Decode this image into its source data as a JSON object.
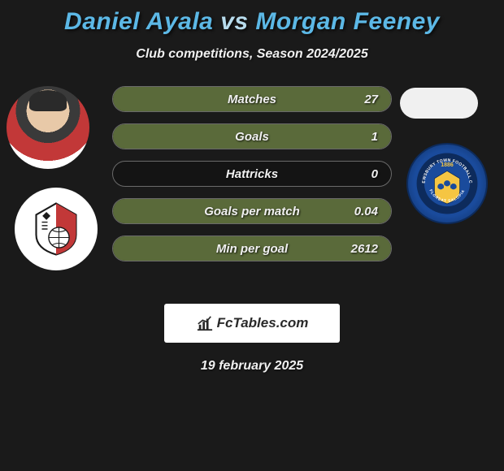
{
  "title": {
    "player1": "Daniel Ayala",
    "connector": "vs",
    "player2": "Morgan Feeney",
    "color_player": "#5cb8e6",
    "color_connector": "#b8dced",
    "fontsize": 30
  },
  "subtitle": {
    "text": "Club competitions, Season 2024/2025",
    "color": "#f0f0f0",
    "fontsize": 16
  },
  "avatars": {
    "left_player": {
      "name": "daniel-ayala-headshot"
    },
    "left_club": {
      "name": "rotherham-united-badge",
      "bg": "#ffffff",
      "accent": "#c23838",
      "stroke": "#1a1a1a"
    },
    "right_player": {
      "name": "morgan-feeney-placeholder",
      "bg": "#f0f0f0"
    },
    "right_club": {
      "name": "shrewsbury-town-badge",
      "bg": "#1a4b9c",
      "ring": "#0d2b5c",
      "accent": "#f5c542",
      "year": "1886"
    }
  },
  "stats": {
    "pill_bg": "#141414",
    "pill_border": "#6a6a6a",
    "pill_fill_right": "#5a6a3a",
    "text_color": "#f0f0f0",
    "label_fontsize": 15,
    "rows": [
      {
        "label": "Matches",
        "left": "",
        "right": "27",
        "fill_right_pct": 100
      },
      {
        "label": "Goals",
        "left": "",
        "right": "1",
        "fill_right_pct": 100
      },
      {
        "label": "Hattricks",
        "left": "",
        "right": "0",
        "fill_right_pct": 0
      },
      {
        "label": "Goals per match",
        "left": "",
        "right": "0.04",
        "fill_right_pct": 100
      },
      {
        "label": "Min per goal",
        "left": "",
        "right": "2612",
        "fill_right_pct": 100
      }
    ]
  },
  "branding": {
    "text": "FcTables.com",
    "bg": "#ffffff",
    "text_color": "#2a2a2a",
    "icon_color": "#2a2a2a"
  },
  "date": {
    "text": "19 february 2025",
    "color": "#f0f0f0",
    "fontsize": 16
  },
  "background_color": "#1a1a1a"
}
